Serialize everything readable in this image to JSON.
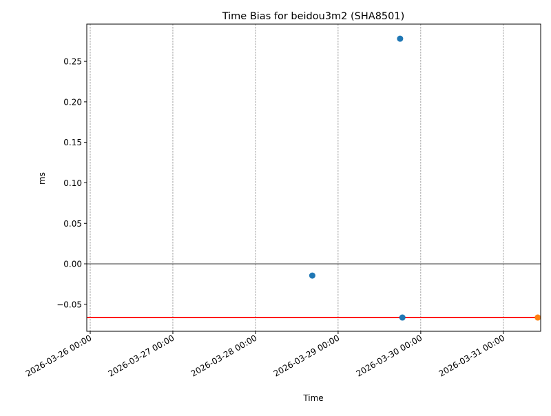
{
  "chart_data": {
    "type": "scatter",
    "title": "Time Bias for beidou3m2 (SHA8501)",
    "xlabel": "Time",
    "ylabel": "ms",
    "xlim": [
      "2026-03-25T23:00",
      "2026-03-31T10:50"
    ],
    "ylim": [
      -0.0833,
      0.296
    ],
    "x_ticks": [
      "2026-03-26 00:00",
      "2026-03-27 00:00",
      "2026-03-28 00:00",
      "2026-03-29 00:00",
      "2026-03-30 00:00",
      "2026-03-31 00:00"
    ],
    "y_ticks": [
      "−0.05",
      "0.00",
      "0.05",
      "0.10",
      "0.15",
      "0.20",
      "0.25"
    ],
    "y_tick_values": [
      -0.05,
      0,
      0.05,
      0.1,
      0.15,
      0.2,
      0.25
    ],
    "grid": "vertical dashed",
    "series": [
      {
        "color": "#1f77b4",
        "points": [
          {
            "x": "2026-03-28T16:30",
            "y": -0.0145
          },
          {
            "x": "2026-03-29T18:00",
            "y": 0.278
          },
          {
            "x": "2026-03-29T18:40",
            "y": -0.0663
          }
        ]
      },
      {
        "color": "#ff7f0e",
        "points": [
          {
            "x": "2026-03-31T10:00",
            "y": -0.0663
          }
        ]
      }
    ],
    "hlines": [
      {
        "y": 0,
        "color": "#000000"
      },
      {
        "y": -0.0663,
        "color": "#ff0000"
      }
    ]
  }
}
